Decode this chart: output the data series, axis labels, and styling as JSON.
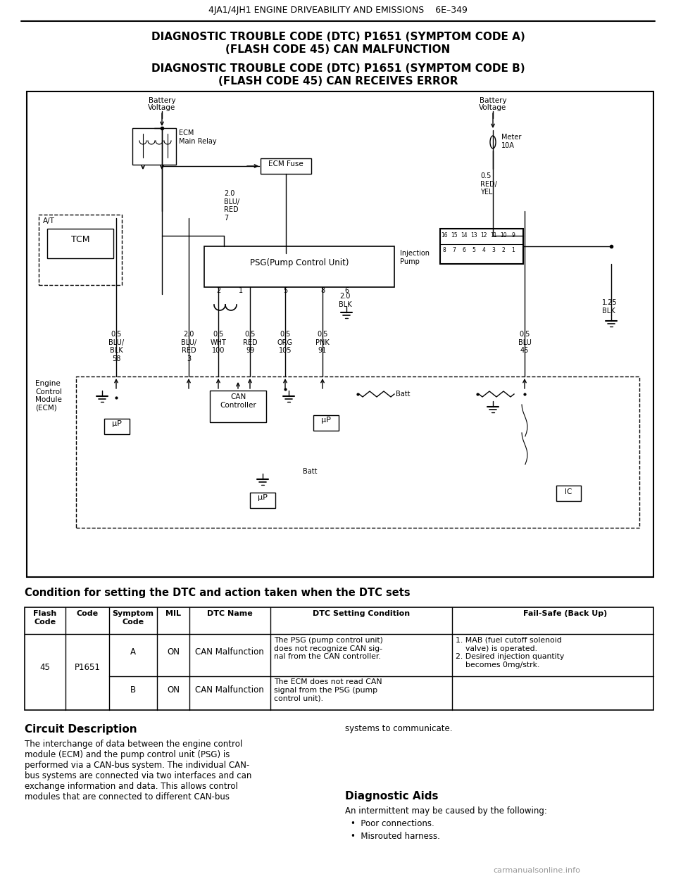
{
  "page_header_left": "4JA1/4JH1 ENGINE DRIVEABILITY AND EMISSIONS",
  "page_header_right": "6E–349",
  "title1_line1": "DIAGNOSTIC TROUBLE CODE (DTC) P1651 (SYMPTOM CODE A)",
  "title1_line2": "(FLASH CODE 45) CAN MALFUNCTION",
  "title2_line1": "DIAGNOSTIC TROUBLE CODE (DTC) P1651 (SYMPTOM CODE B)",
  "title2_line2": "(FLASH CODE 45) CAN RECEIVES ERROR",
  "section_title": "Condition for setting the DTC and action taken when the DTC sets",
  "table_headers": [
    "Flash\nCode",
    "Code",
    "Symptom\nCode",
    "MIL",
    "DTC Name",
    "DTC Setting Condition",
    "Fail-Safe (Back Up)"
  ],
  "table_row_a": [
    "45",
    "P1651",
    "A",
    "ON",
    "CAN Malfunction",
    "The PSG (pump control unit)\ndoes not recognize CAN sig-\nnal from the CAN controller.",
    "1. MAB (fuel cutoff solenoid\n    valve) is operated.\n2. Desired injection quantity\n    becomes 0mg/strk."
  ],
  "table_row_b": [
    "",
    "",
    "B",
    "ON",
    "CAN Malfunction",
    "The ECM does not read CAN\nsignal from the PSG (pump\ncontrol unit).",
    ""
  ],
  "circuit_desc_title": "Circuit Description",
  "circuit_desc_text": "The interchange of data between the engine control\nmodule (ECM) and the pump control unit (PSG) is\nperformed via a CAN-bus system. The individual CAN-\nbus systems are connected via two interfaces and can\nexchange information and data. This allows control\nmodules that are connected to different CAN-bus",
  "right_col_text": "systems to communicate.",
  "diag_aids_title": "Diagnostic Aids",
  "diag_aids_intro": "An intermittent may be caused by the following:",
  "diag_aids_bullets": [
    "Poor connections.",
    "Misrouted harness."
  ],
  "watermark": "carmanualsonline.info",
  "bg_color": "#ffffff"
}
